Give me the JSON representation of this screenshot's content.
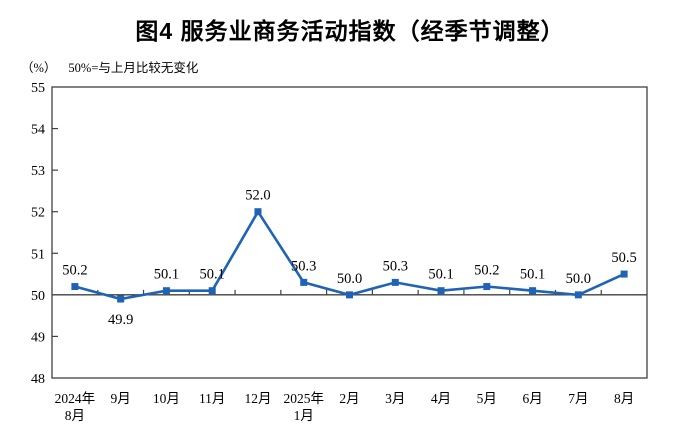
{
  "page": {
    "background_color": "#ffffff"
  },
  "chart_data": {
    "type": "line",
    "title": "图4 服务业商务活动指数（经季节调整）",
    "unit_label": "（%）",
    "note": "50%=与上月比较无变化",
    "xlabel": "",
    "ylabel": "",
    "categories": [
      [
        "2024年",
        "8月"
      ],
      [
        "9月"
      ],
      [
        "10月"
      ],
      [
        "11月"
      ],
      [
        "12月"
      ],
      [
        "2025年",
        "1月"
      ],
      [
        "2月"
      ],
      [
        "3月"
      ],
      [
        "4月"
      ],
      [
        "5月"
      ],
      [
        "6月"
      ],
      [
        "7月"
      ],
      [
        "8月"
      ]
    ],
    "series": [
      {
        "name": "服务业商务活动指数",
        "values": [
          50.2,
          49.9,
          50.1,
          50.1,
          52.0,
          50.3,
          50.0,
          50.3,
          50.1,
          50.2,
          50.1,
          50.0,
          50.5
        ],
        "point_labels": [
          "50.2",
          "49.9",
          "50.1",
          "50.1",
          "52.0",
          "50.3",
          "50.0",
          "50.3",
          "50.1",
          "50.2",
          "50.1",
          "50.0",
          "50.5"
        ],
        "label_positions": [
          "above",
          "below",
          "above",
          "above",
          "above",
          "above",
          "above",
          "above",
          "above",
          "above",
          "above",
          "above",
          "above"
        ],
        "color": "#1f63b5",
        "marker": "square"
      }
    ],
    "ylim": [
      48,
      55
    ],
    "yticks": [
      48,
      49,
      50,
      51,
      52,
      53,
      54,
      55
    ],
    "baseline": 50,
    "grid": false,
    "legend_position": "none",
    "axis_color": "#404040",
    "label_color": "#000000"
  }
}
